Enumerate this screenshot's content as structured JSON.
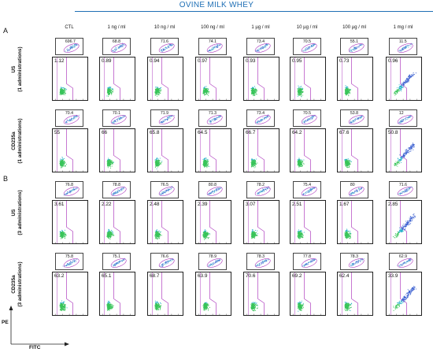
{
  "title": "OVINE MILK WHEY",
  "panels": [
    {
      "label": "A"
    },
    {
      "label": "B"
    }
  ],
  "columns": [
    "CTL",
    "1 ng / ml",
    "10 ng / ml",
    "100 ng / ml",
    "1 µg / ml",
    "10 µg / ml",
    "100 µg / ml",
    "1 mg / ml"
  ],
  "rows": [
    {
      "label": "US\n(1 administrations)",
      "small_values": [
        "696.7",
        "68.8",
        "71.6",
        "74.1",
        "73.4",
        "70.5",
        "55.1",
        "11.5"
      ],
      "big_values": [
        "1.12",
        "0.89",
        "0.94",
        "0.97",
        "0.93",
        "0.95",
        "0.73",
        "0.96"
      ]
    },
    {
      "label": "CD235a\n(1 administrations)",
      "small_values": [
        "70.4",
        "70.1",
        "71.9",
        "71.3",
        "73.4",
        "70.5",
        "53.8",
        "12"
      ],
      "big_values": [
        "55",
        "66",
        "65.8",
        "64.5",
        "66.7",
        "64.2",
        "67.6",
        "50.8"
      ]
    },
    {
      "label": "US\n(3 administrations)",
      "small_values": [
        "76.8",
        "78.8",
        "76.5",
        "80.8",
        "78.2",
        "75.4",
        "80",
        "71.6"
      ],
      "big_values": [
        "3.61",
        "2.22",
        "2.48",
        "2.39",
        "3.07",
        "2.51",
        "1.67",
        "2.85"
      ]
    },
    {
      "label": "CD235a\n(3 administrations)",
      "small_values": [
        "75.8",
        "75.1",
        "76.6",
        "78.9",
        "78.3",
        "77.8",
        "78.3",
        "62.9"
      ],
      "big_values": [
        "63.2",
        "65.1",
        "68.7",
        "63.9",
        "70.6",
        "69.2",
        "62.4",
        "33.9"
      ]
    }
  ],
  "axes": {
    "y": "PE",
    "x": "FITC"
  },
  "colors": {
    "title": "#1f6fb5",
    "gate": "#b040c0",
    "dots_low": "#3a5fd0",
    "dots_mid": "#21b0c8",
    "dots_high": "#39c45a"
  }
}
